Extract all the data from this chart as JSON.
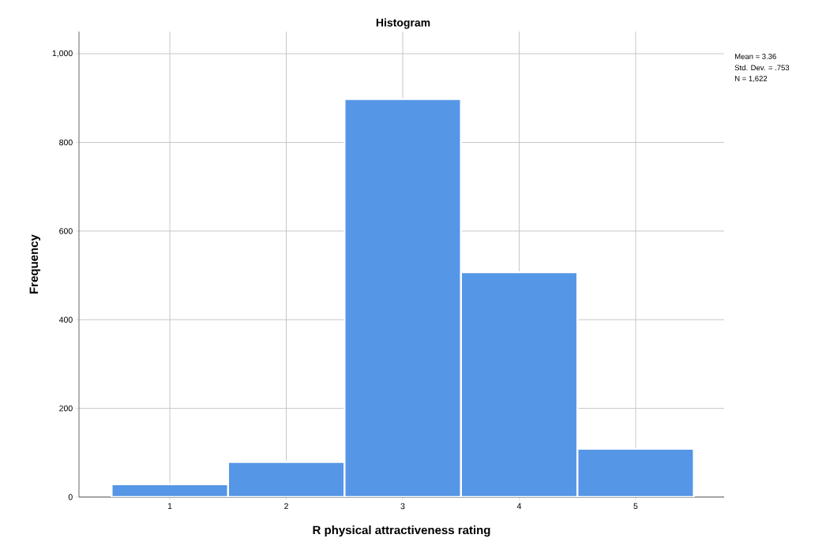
{
  "chart_data": {
    "type": "histogram",
    "title": "Histogram",
    "xlabel": "R physical attractiveness rating",
    "ylabel": "Frequency",
    "bins": [
      0.5,
      1.5,
      2.5,
      3.5,
      4.5,
      5.5
    ],
    "values": [
      29,
      79,
      898,
      507,
      109
    ],
    "color": "#5596e6",
    "xlim": [
      0.22,
      5.76
    ],
    "ylim": [
      0,
      1050
    ],
    "xticks": [
      1,
      2,
      3,
      4,
      5
    ],
    "yticks": [
      0,
      200,
      400,
      600,
      800,
      {
        "value": 1000,
        "label": "1,000"
      }
    ],
    "grid": true,
    "annotations": [
      "Mean = 3.36",
      "Std. Dev. = .753",
      "N = 1,622"
    ]
  }
}
